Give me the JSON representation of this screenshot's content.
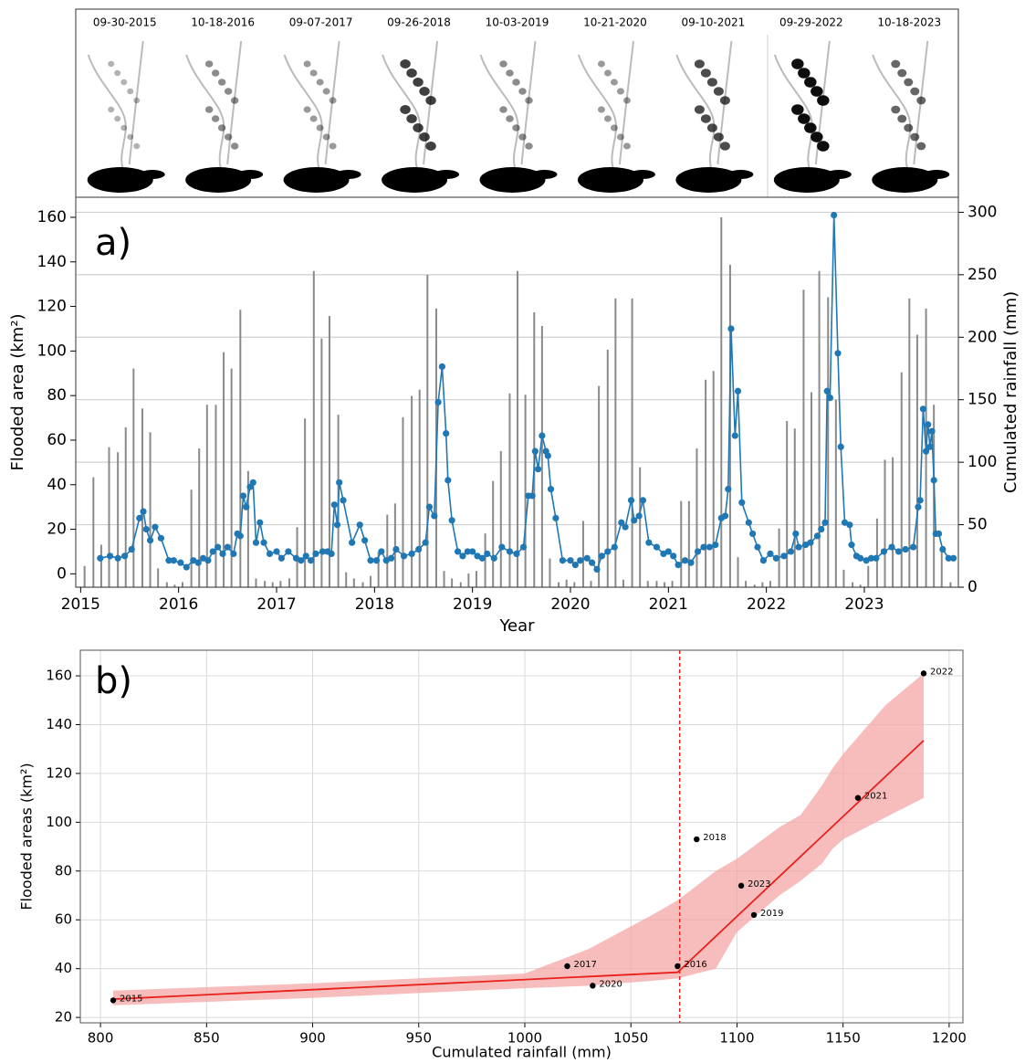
{
  "image_strip": {
    "dates": [
      "09-30-2015",
      "10-18-2016",
      "09-07-2017",
      "09-26-2018",
      "10-03-2019",
      "10-21-2020",
      "09-10-2021",
      "09-29-2022",
      "10-18-2023"
    ]
  },
  "chart_data": [
    {
      "type": "combo",
      "panel_label": "a)",
      "xlabel": "Year",
      "ylabel": "Flooded area (km²)",
      "y2label": "Cumulated rainfall (mm)",
      "xlim": [
        2014.95,
        2023.96
      ],
      "xticks": [
        2015,
        2016,
        2017,
        2018,
        2019,
        2020,
        2021,
        2022,
        2023
      ],
      "ylim": [
        -6,
        169
      ],
      "yticks": [
        0,
        20,
        40,
        60,
        80,
        100,
        120,
        140,
        160
      ],
      "y2lim": [
        0,
        312
      ],
      "y2ticks": [
        0,
        50,
        100,
        150,
        200,
        250,
        300
      ],
      "grid": true,
      "series": [
        {
          "kind": "bar",
          "axis": "y2",
          "color": "#8a8a8a",
          "x": [
            2015.04,
            2015.13,
            2015.21,
            2015.29,
            2015.38,
            2015.46,
            2015.54,
            2015.63,
            2015.71,
            2015.79,
            2015.88,
            2015.96,
            2016.04,
            2016.13,
            2016.21,
            2016.29,
            2016.38,
            2016.46,
            2016.54,
            2016.63,
            2016.71,
            2016.79,
            2016.88,
            2016.96,
            2017.04,
            2017.13,
            2017.21,
            2017.29,
            2017.38,
            2017.46,
            2017.54,
            2017.63,
            2017.71,
            2017.79,
            2017.88,
            2017.96,
            2018.04,
            2018.13,
            2018.21,
            2018.29,
            2018.38,
            2018.46,
            2018.54,
            2018.63,
            2018.71,
            2018.79,
            2018.88,
            2018.96,
            2019.04,
            2019.13,
            2019.21,
            2019.29,
            2019.38,
            2019.46,
            2019.54,
            2019.63,
            2019.71,
            2019.79,
            2019.88,
            2019.96,
            2020.04,
            2020.13,
            2020.21,
            2020.29,
            2020.38,
            2020.46,
            2020.54,
            2020.63,
            2020.71,
            2020.79,
            2020.88,
            2020.96,
            2021.04,
            2021.13,
            2021.21,
            2021.29,
            2021.38,
            2021.46,
            2021.54,
            2021.63,
            2021.71,
            2021.79,
            2021.88,
            2021.96,
            2022.04,
            2022.13,
            2022.21,
            2022.29,
            2022.38,
            2022.46,
            2022.54,
            2022.63,
            2022.71,
            2022.79,
            2022.88,
            2022.96,
            2023.04,
            2023.13,
            2023.21,
            2023.29,
            2023.38,
            2023.46,
            2023.54,
            2023.63,
            2023.71,
            2023.79,
            2023.88
          ],
          "values": [
            17,
            88,
            34,
            112,
            108,
            128,
            175,
            143,
            124,
            15,
            4,
            2,
            4,
            78,
            111,
            146,
            146,
            188,
            175,
            222,
            93,
            7,
            5,
            4,
            5,
            7,
            48,
            135,
            253,
            199,
            217,
            138,
            12,
            7,
            4,
            9,
            28,
            58,
            67,
            136,
            153,
            158,
            250,
            223,
            13,
            7,
            4,
            11,
            13,
            43,
            85,
            109,
            155,
            253,
            154,
            220,
            209,
            23,
            4,
            6,
            4,
            53,
            5,
            161,
            190,
            231,
            6,
            231,
            96,
            5,
            5,
            4,
            5,
            69,
            69,
            111,
            166,
            173,
            296,
            258,
            24,
            5,
            2,
            4,
            5,
            47,
            133,
            127,
            238,
            156,
            253,
            232,
            150,
            14,
            4,
            2,
            17,
            55,
            102,
            104,
            172,
            231,
            202,
            223,
            146,
            28,
            4
          ]
        },
        {
          "kind": "line",
          "axis": "y",
          "color": "#1f77b4",
          "x": [
            2015.2,
            2015.3,
            2015.38,
            2015.45,
            2015.52,
            2015.6,
            2015.64,
            2015.67,
            2015.71,
            2015.76,
            2015.82,
            2015.9,
            2015.95,
            2016.02,
            2016.08,
            2016.15,
            2016.2,
            2016.25,
            2016.3,
            2016.35,
            2016.4,
            2016.45,
            2016.5,
            2016.56,
            2016.6,
            2016.63,
            2016.66,
            2016.69,
            2016.73,
            2016.76,
            2016.79,
            2016.83,
            2016.87,
            2016.93,
            2017.0,
            2017.05,
            2017.12,
            2017.2,
            2017.25,
            2017.3,
            2017.35,
            2017.4,
            2017.47,
            2017.52,
            2017.56,
            2017.59,
            2017.62,
            2017.64,
            2017.68,
            2017.77,
            2017.85,
            2017.9,
            2017.96,
            2018.02,
            2018.07,
            2018.12,
            2018.17,
            2018.22,
            2018.3,
            2018.38,
            2018.45,
            2018.52,
            2018.56,
            2018.61,
            2018.65,
            2018.69,
            2018.73,
            2018.75,
            2018.79,
            2018.85,
            2018.9,
            2018.95,
            2019.0,
            2019.05,
            2019.1,
            2019.15,
            2019.22,
            2019.3,
            2019.38,
            2019.45,
            2019.52,
            2019.57,
            2019.61,
            2019.64,
            2019.67,
            2019.71,
            2019.75,
            2019.77,
            2019.8,
            2019.85,
            2019.92,
            2020.0,
            2020.05,
            2020.1,
            2020.17,
            2020.22,
            2020.27,
            2020.32,
            2020.38,
            2020.45,
            2020.52,
            2020.56,
            2020.62,
            2020.65,
            2020.7,
            2020.74,
            2020.8,
            2020.88,
            2020.95,
            2021.0,
            2021.05,
            2021.1,
            2021.17,
            2021.23,
            2021.3,
            2021.36,
            2021.42,
            2021.48,
            2021.54,
            2021.58,
            2021.61,
            2021.64,
            2021.68,
            2021.71,
            2021.75,
            2021.82,
            2021.86,
            2021.91,
            2021.97,
            2022.04,
            2022.1,
            2022.18,
            2022.25,
            2022.3,
            2022.33,
            2022.4,
            2022.45,
            2022.52,
            2022.56,
            2022.6,
            2022.62,
            2022.65,
            2022.69,
            2022.73,
            2022.76,
            2022.8,
            2022.85,
            2022.87,
            2022.92,
            2022.96,
            2023.02,
            2023.07,
            2023.12,
            2023.2,
            2023.28,
            2023.35,
            2023.42,
            2023.5,
            2023.55,
            2023.57,
            2023.6,
            2023.63,
            2023.65,
            2023.67,
            2023.69,
            2023.71,
            2023.73,
            2023.76,
            2023.8,
            2023.86,
            2023.91
          ],
          "values": [
            7,
            8,
            7,
            8,
            11,
            25,
            28,
            20,
            15,
            21,
            16,
            6,
            6,
            5,
            3,
            6,
            5,
            7,
            6,
            10,
            12,
            9,
            12,
            9,
            18,
            17,
            35,
            30,
            39,
            41,
            14,
            23,
            14,
            9,
            10,
            7,
            10,
            7,
            6,
            8,
            6,
            9,
            10,
            10,
            9,
            31,
            22,
            41,
            33,
            14,
            22,
            15,
            6,
            6,
            10,
            6,
            7,
            11,
            8,
            9,
            11,
            14,
            30,
            26,
            77,
            93,
            63,
            42,
            24,
            10,
            8,
            10,
            10,
            8,
            7,
            9,
            7,
            12,
            10,
            9,
            12,
            35,
            35,
            55,
            47,
            62,
            55,
            53,
            38,
            25,
            6,
            6,
            4,
            6,
            7,
            5,
            2,
            8,
            10,
            12,
            23,
            21,
            33,
            24,
            26,
            33,
            14,
            12,
            9,
            10,
            8,
            4,
            6,
            5,
            10,
            12,
            12,
            13,
            25,
            26,
            38,
            110,
            62,
            82,
            32,
            23,
            18,
            12,
            6,
            9,
            7,
            8,
            10,
            18,
            12,
            13,
            14,
            17,
            20,
            23,
            82,
            79,
            161,
            99,
            57,
            23,
            22,
            13,
            8,
            7,
            6,
            7,
            7,
            10,
            12,
            10,
            11,
            12,
            30,
            33,
            74,
            55,
            67,
            57,
            64,
            42,
            18,
            18,
            11,
            7,
            7
          ]
        }
      ]
    },
    {
      "type": "scatter",
      "panel_label": "b)",
      "xlabel": "Cumulated rainfall (mm)",
      "ylabel": "Flooded areas (km²)",
      "xlim": [
        790.5,
        1206.5
      ],
      "xticks": [
        800,
        850,
        900,
        950,
        1000,
        1050,
        1100,
        1150,
        1200
      ],
      "ylim": [
        17.8,
        170.5
      ],
      "yticks": [
        20,
        40,
        60,
        80,
        100,
        120,
        140,
        160
      ],
      "grid": true,
      "series": [
        {
          "color": "#000000",
          "x": [
            806,
            1072,
            1020,
            1081,
            1108,
            1032,
            1157,
            1188,
            1102
          ],
          "values": [
            27,
            41,
            41,
            93,
            62,
            33,
            110,
            161,
            74
          ],
          "labels": [
            "2015",
            "2016",
            "2017",
            "2018",
            "2019",
            "2020",
            "2021",
            "2022",
            "2023"
          ]
        }
      ],
      "fit": {
        "color": "#e8211b",
        "x": [
          806,
          1072,
          1188
        ],
        "values": [
          27.5,
          38.5,
          133.5
        ]
      },
      "band": {
        "color": "#f4a7a7",
        "x": [
          806,
          900,
          1000,
          1030,
          1060,
          1072,
          1090,
          1100,
          1120,
          1130,
          1140,
          1145,
          1150,
          1170,
          1188
        ],
        "lower": [
          25,
          28,
          32,
          33,
          35,
          36,
          40,
          55,
          70,
          76,
          83,
          89,
          93,
          102,
          110
        ],
        "upper": [
          31,
          34,
          38,
          48,
          62,
          68,
          80,
          85,
          98,
          103,
          115,
          122,
          128,
          148,
          161
        ]
      },
      "breakpoint": 1073
    }
  ]
}
